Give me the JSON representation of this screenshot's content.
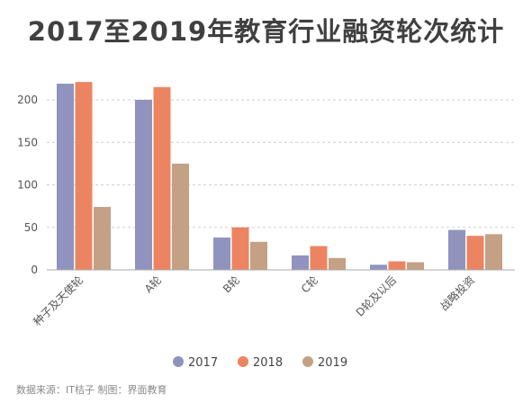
{
  "title": "2017至2019年教育行业融资轮次统计",
  "source": "数据来源：IT桔子 制图：界面教育",
  "chart_data": {
    "type": "bar",
    "title": "2017至2019年教育行业融资轮次统计",
    "categories": [
      "种子及天使轮",
      "A轮",
      "B轮",
      "C轮",
      "D轮及以后",
      "战略投资"
    ],
    "series": [
      {
        "name": "2017",
        "color": "#9093bd",
        "values": [
          219,
          200,
          38,
          17,
          6,
          47
        ]
      },
      {
        "name": "2018",
        "color": "#ec8462",
        "values": [
          221,
          215,
          50,
          28,
          10,
          40
        ]
      },
      {
        "name": "2019",
        "color": "#c4a084",
        "values": [
          74,
          125,
          33,
          14,
          9,
          42
        ]
      }
    ],
    "yticks": [
      0,
      50,
      100,
      150,
      200
    ],
    "ylim": [
      0,
      230
    ],
    "grid": true,
    "legend": "bottom"
  }
}
